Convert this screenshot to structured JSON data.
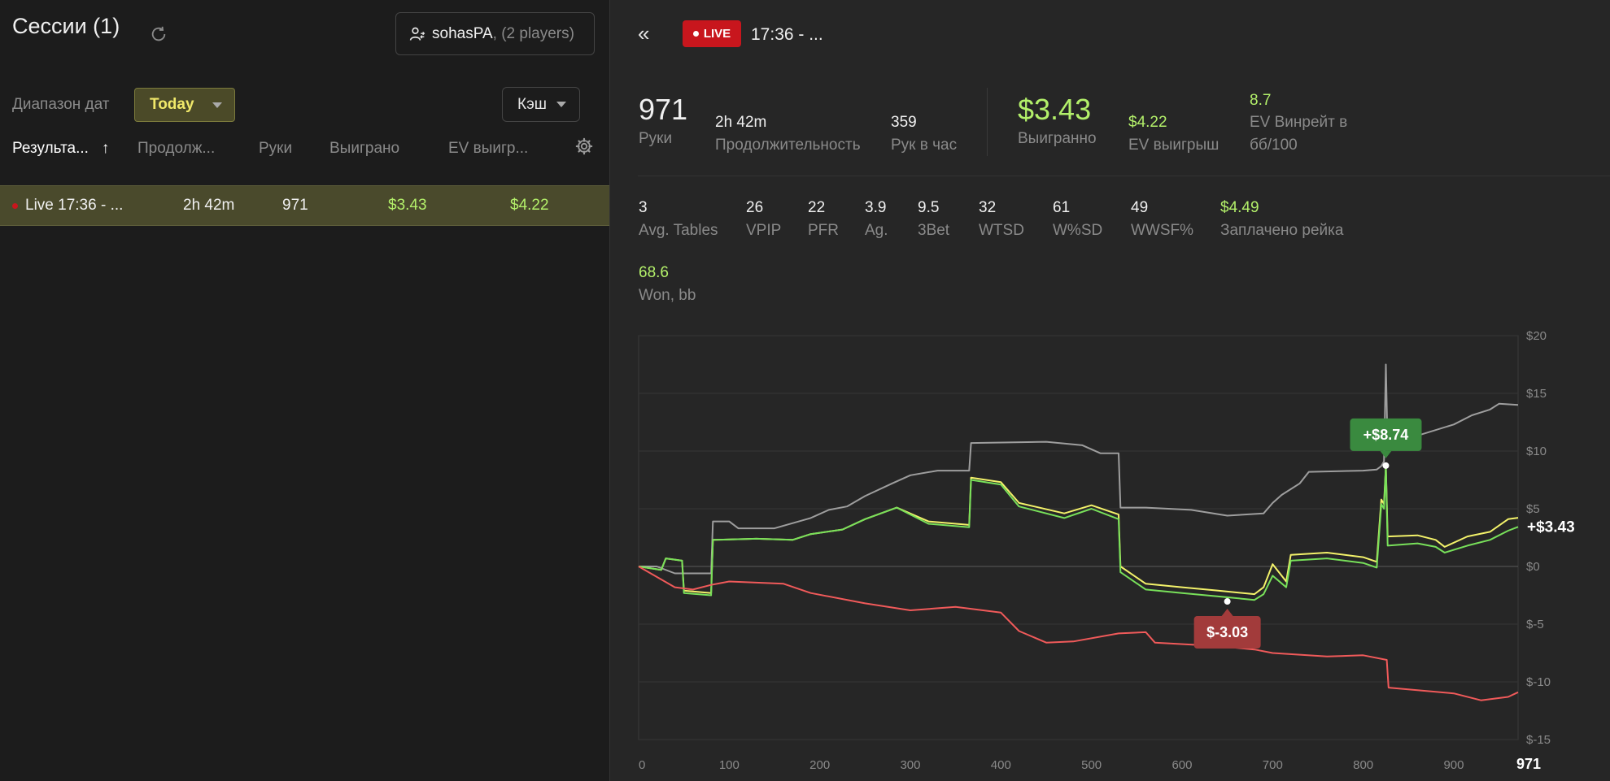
{
  "left": {
    "title": "Сессии (1)",
    "player_name": "sohasPA",
    "player_count": ", (2 players)",
    "date_range_label": "Диапазон дат",
    "date_range_value": "Today",
    "game_type": "Кэш",
    "columns": [
      "Результа...",
      "Продолж...",
      "Руки",
      "Выиграно",
      "EV выигр..."
    ],
    "sort_arrow": "↑",
    "rows": [
      {
        "name": "Live 17:36 - ...",
        "duration": "2h 42m",
        "hands": "971",
        "won": "$3.43",
        "ev_won": "$4.22"
      }
    ]
  },
  "detail": {
    "back_icon": "«",
    "live_label": "LIVE",
    "session_title": "17:36 - ...",
    "summary": {
      "hands_value": "971",
      "hands_label": "Руки",
      "duration_value": "2h 42m",
      "duration_label": "Продолжительность",
      "hands_per_hour_value": "359",
      "hands_per_hour_label": "Рук в час",
      "won_value": "$3.43",
      "won_label": "Выигранно",
      "ev_won_value": "$4.22",
      "ev_won_label": "EV выигрыш",
      "ev_winrate_value": "8.7",
      "ev_winrate_label_1": "EV Винрейт в",
      "ev_winrate_label_2": "бб/100"
    },
    "stats": [
      {
        "value": "3",
        "label": "Avg. Tables"
      },
      {
        "value": "26",
        "label": "VPIP"
      },
      {
        "value": "22",
        "label": "PFR"
      },
      {
        "value": "3.9",
        "label": "Ag."
      },
      {
        "value": "9.5",
        "label": "3Bet"
      },
      {
        "value": "32",
        "label": "WTSD"
      },
      {
        "value": "61",
        "label": "W%SD"
      },
      {
        "value": "49",
        "label": "WWSF%"
      },
      {
        "value": "$4.49",
        "label": "Заплачено рейка"
      }
    ],
    "won_bb": {
      "value": "68.6",
      "label": "Won, bb"
    }
  },
  "colors": {
    "green": "#b3f06a",
    "live_red": "#c8161d",
    "today_bg": "#4b4a28",
    "today_text": "#f0e86a"
  },
  "chart_data": {
    "type": "line",
    "x_ticks": [
      "0",
      "100",
      "200",
      "300",
      "400",
      "500",
      "600",
      "700",
      "800",
      "900"
    ],
    "x_end_label": "971",
    "y_ticks": [
      "$20",
      "$15",
      "$10",
      "$5",
      "$0",
      "$-5",
      "$-10",
      "$-15"
    ],
    "xlim": [
      0,
      971
    ],
    "ylim": [
      -15,
      20
    ],
    "end_label": "+$3.43",
    "max_label": "+$8.74",
    "max_point": {
      "x": 825,
      "y": 8.74
    },
    "min_label": "$-3.03",
    "min_point": {
      "x": 650,
      "y": -3.03
    },
    "series": [
      {
        "color": "#9e9e9e",
        "points": [
          [
            0,
            0
          ],
          [
            20,
            0
          ],
          [
            40,
            -0.6
          ],
          [
            80,
            -0.6
          ],
          [
            82,
            3.9
          ],
          [
            100,
            3.9
          ],
          [
            110,
            3.3
          ],
          [
            150,
            3.3
          ],
          [
            190,
            4.2
          ],
          [
            210,
            4.9
          ],
          [
            230,
            5.2
          ],
          [
            250,
            6.1
          ],
          [
            280,
            7.2
          ],
          [
            300,
            7.9
          ],
          [
            330,
            8.3
          ],
          [
            365,
            8.3
          ],
          [
            367,
            10.7
          ],
          [
            450,
            10.8
          ],
          [
            490,
            10.5
          ],
          [
            510,
            9.8
          ],
          [
            530,
            9.8
          ],
          [
            532,
            5.1
          ],
          [
            560,
            5.1
          ],
          [
            610,
            4.9
          ],
          [
            650,
            4.4
          ],
          [
            690,
            4.6
          ],
          [
            700,
            5.5
          ],
          [
            710,
            6.2
          ],
          [
            730,
            7.2
          ],
          [
            740,
            8.2
          ],
          [
            800,
            8.3
          ],
          [
            815,
            8.4
          ],
          [
            820,
            8.7
          ],
          [
            823,
            9.1
          ],
          [
            825,
            17.5
          ],
          [
            827,
            10.1
          ],
          [
            850,
            11.1
          ],
          [
            900,
            12.3
          ],
          [
            920,
            13.1
          ],
          [
            940,
            13.6
          ],
          [
            950,
            14.1
          ],
          [
            971,
            14.0
          ]
        ]
      },
      {
        "color": "#f3f26a",
        "points": [
          [
            0,
            0
          ],
          [
            25,
            -0.3
          ],
          [
            30,
            0.7
          ],
          [
            48,
            0.5
          ],
          [
            50,
            -2.1
          ],
          [
            80,
            -2.3
          ],
          [
            82,
            2.3
          ],
          [
            130,
            2.4
          ],
          [
            170,
            2.3
          ],
          [
            190,
            2.8
          ],
          [
            225,
            3.2
          ],
          [
            250,
            4.1
          ],
          [
            285,
            5.1
          ],
          [
            320,
            3.9
          ],
          [
            365,
            3.6
          ],
          [
            367,
            7.7
          ],
          [
            400,
            7.3
          ],
          [
            420,
            5.5
          ],
          [
            470,
            4.6
          ],
          [
            500,
            5.3
          ],
          [
            530,
            4.5
          ],
          [
            532,
            0
          ],
          [
            560,
            -1.5
          ],
          [
            600,
            -1.8
          ],
          [
            640,
            -2.1
          ],
          [
            680,
            -2.4
          ],
          [
            690,
            -1.8
          ],
          [
            700,
            0.2
          ],
          [
            715,
            -1.3
          ],
          [
            720,
            1.0
          ],
          [
            760,
            1.2
          ],
          [
            800,
            0.8
          ],
          [
            815,
            0.4
          ],
          [
            820,
            5.8
          ],
          [
            823,
            5.4
          ],
          [
            825,
            8.74
          ],
          [
            827,
            2.6
          ],
          [
            860,
            2.7
          ],
          [
            880,
            2.3
          ],
          [
            890,
            1.7
          ],
          [
            915,
            2.6
          ],
          [
            940,
            3.0
          ],
          [
            960,
            4.1
          ],
          [
            971,
            4.22
          ]
        ]
      },
      {
        "color": "#78e05a",
        "points": [
          [
            0,
            0
          ],
          [
            25,
            -0.3
          ],
          [
            30,
            0.7
          ],
          [
            48,
            0.5
          ],
          [
            50,
            -2.3
          ],
          [
            80,
            -2.5
          ],
          [
            82,
            2.3
          ],
          [
            130,
            2.4
          ],
          [
            170,
            2.3
          ],
          [
            190,
            2.8
          ],
          [
            225,
            3.2
          ],
          [
            250,
            4.1
          ],
          [
            285,
            5.1
          ],
          [
            320,
            3.7
          ],
          [
            365,
            3.4
          ],
          [
            367,
            7.5
          ],
          [
            400,
            7.1
          ],
          [
            420,
            5.2
          ],
          [
            470,
            4.2
          ],
          [
            500,
            5.0
          ],
          [
            530,
            4.1
          ],
          [
            532,
            -0.5
          ],
          [
            560,
            -2.0
          ],
          [
            600,
            -2.3
          ],
          [
            640,
            -2.6
          ],
          [
            680,
            -2.9
          ],
          [
            690,
            -2.4
          ],
          [
            700,
            -0.8
          ],
          [
            715,
            -1.8
          ],
          [
            720,
            0.5
          ],
          [
            760,
            0.7
          ],
          [
            800,
            0.3
          ],
          [
            815,
            -0.1
          ],
          [
            820,
            5.4
          ],
          [
            823,
            5.0
          ],
          [
            825,
            8.74
          ],
          [
            827,
            1.8
          ],
          [
            860,
            2.0
          ],
          [
            880,
            1.7
          ],
          [
            890,
            1.2
          ],
          [
            915,
            1.8
          ],
          [
            940,
            2.3
          ],
          [
            960,
            3.1
          ],
          [
            971,
            3.43
          ]
        ]
      },
      {
        "color": "#f05a5a",
        "points": [
          [
            0,
            0
          ],
          [
            40,
            -1.8
          ],
          [
            60,
            -2.0
          ],
          [
            80,
            -1.6
          ],
          [
            100,
            -1.3
          ],
          [
            160,
            -1.5
          ],
          [
            190,
            -2.3
          ],
          [
            250,
            -3.2
          ],
          [
            300,
            -3.8
          ],
          [
            350,
            -3.5
          ],
          [
            400,
            -4.0
          ],
          [
            420,
            -5.6
          ],
          [
            450,
            -6.6
          ],
          [
            480,
            -6.5
          ],
          [
            530,
            -5.8
          ],
          [
            560,
            -5.7
          ],
          [
            570,
            -6.6
          ],
          [
            640,
            -6.9
          ],
          [
            680,
            -7.2
          ],
          [
            700,
            -7.5
          ],
          [
            760,
            -7.8
          ],
          [
            800,
            -7.7
          ],
          [
            826,
            -8.1
          ],
          [
            828,
            -10.5
          ],
          [
            900,
            -11.0
          ],
          [
            930,
            -11.6
          ],
          [
            960,
            -11.3
          ],
          [
            971,
            -10.9
          ]
        ]
      }
    ]
  }
}
